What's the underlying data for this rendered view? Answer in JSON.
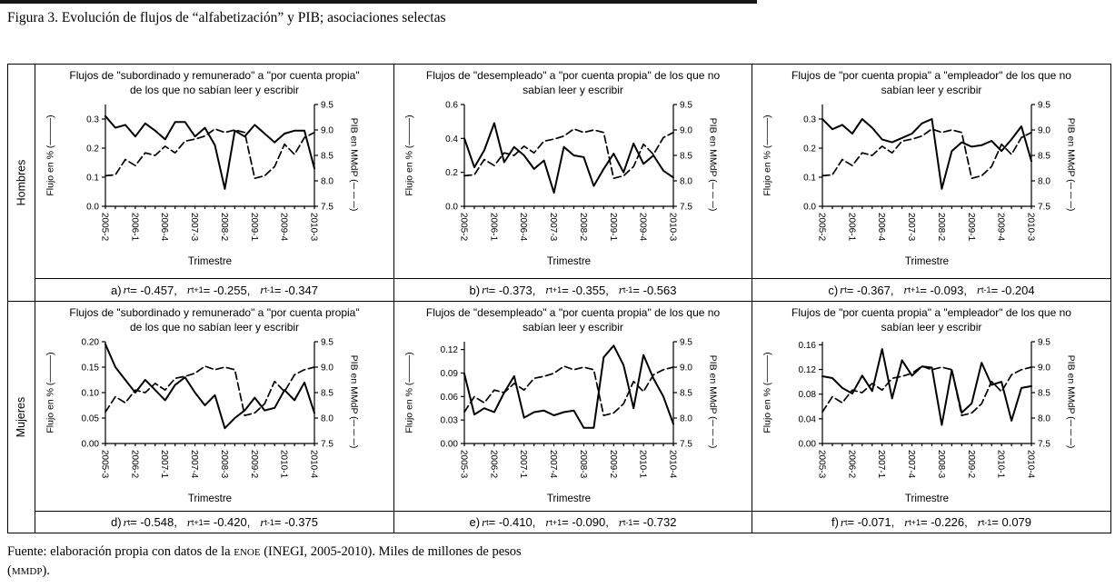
{
  "figure": {
    "title": "Figura 3. Evolución de flujos de “alfabetización” y PIB; asociaciones selectas"
  },
  "rows": [
    {
      "label": "Hombres"
    },
    {
      "label": "Mujeres"
    }
  ],
  "footer": {
    "pre": "Fuente: elaboración propia con datos de la ",
    "enoe": "ENOE",
    "post": " (INEGI, 2005-2010). Miles de millones de pesos",
    "l2_open": "(",
    "mmdp": "MMDP",
    "l2_close": ")."
  },
  "chart_data": [
    {
      "panel": "a",
      "row": "Hombres",
      "type": "line",
      "title": "Flujos de \"subordinado y remunerado\" a \"por cuenta propia\" de los que no sabían leer y escribir",
      "xlabel": "Trimestre",
      "ylabel_left": "Flujo en % (────)",
      "ylabel_right": "PIB en MMdP (─ ─ ─)",
      "x_tick_labels": [
        "2005-2",
        "2006-1",
        "2006-4",
        "2007-3",
        "2008-2",
        "2009-1",
        "2009-4",
        "2010-3"
      ],
      "label_every": 3,
      "yticks_left": [
        "0.0",
        "0.1",
        "0.2",
        "0.3"
      ],
      "ylim_left": [
        0,
        0.35
      ],
      "yticks_right": [
        "7.5",
        "8.0",
        "8.5",
        "9.0",
        "9.5"
      ],
      "ylim_right": [
        7.5,
        9.5
      ],
      "legend_position": "none",
      "grid": false,
      "series": [
        {
          "name": "Flujo en %",
          "style": "solid",
          "axis": "left",
          "values": [
            0.31,
            0.27,
            0.28,
            0.24,
            0.285,
            0.26,
            0.23,
            0.29,
            0.29,
            0.24,
            0.27,
            0.21,
            0.06,
            0.26,
            0.24,
            0.28,
            0.25,
            0.22,
            0.25,
            0.26,
            0.26,
            0.13
          ]
        },
        {
          "name": "PIB en MMdP",
          "style": "dashed",
          "axis": "right",
          "values": [
            8.1,
            8.12,
            8.42,
            8.3,
            8.55,
            8.5,
            8.68,
            8.55,
            8.78,
            8.82,
            8.88,
            9.02,
            8.95,
            9.0,
            8.95,
            8.05,
            8.1,
            8.28,
            8.72,
            8.52,
            8.85,
            8.95
          ]
        }
      ],
      "stats": {
        "prefix": "a)",
        "r": [
          {
            "sub": "t",
            "value": "-0.457"
          },
          {
            "sub": "t+1",
            "value": "-0.255"
          },
          {
            "sub": "t-1",
            "value": "-0.347"
          }
        ]
      }
    },
    {
      "panel": "b",
      "row": "Hombres",
      "type": "line",
      "title": "Flujos de \"desempleado\" a \"por cuenta propia\" de los que no sabían leer y escribir",
      "xlabel": "Trimestre",
      "ylabel_left": "Flujo en % (────)",
      "ylabel_right": "PIB en MMdP (─ ─ ─)",
      "x_tick_labels": [
        "2005-2",
        "2006-1",
        "2006-4",
        "2007-3",
        "2008-2",
        "2009-1",
        "2009-4",
        "2010-3"
      ],
      "label_every": 3,
      "yticks_left": [
        "0.0",
        "0.2",
        "0.4",
        "0.6"
      ],
      "ylim_left": [
        0,
        0.6
      ],
      "yticks_right": [
        "7.5",
        "8.0",
        "8.5",
        "9.0",
        "9.5"
      ],
      "ylim_right": [
        7.5,
        9.5
      ],
      "legend_position": "none",
      "grid": false,
      "series": [
        {
          "name": "Flujo en %",
          "style": "solid",
          "axis": "left",
          "values": [
            0.4,
            0.23,
            0.33,
            0.49,
            0.26,
            0.35,
            0.3,
            0.22,
            0.27,
            0.08,
            0.35,
            0.3,
            0.29,
            0.12,
            0.22,
            0.31,
            0.2,
            0.37,
            0.25,
            0.3,
            0.21,
            0.17
          ]
        },
        {
          "name": "PIB en MMdP",
          "style": "dashed",
          "axis": "right",
          "values": [
            8.1,
            8.12,
            8.42,
            8.3,
            8.55,
            8.5,
            8.68,
            8.55,
            8.78,
            8.82,
            8.88,
            9.02,
            8.95,
            9.0,
            8.95,
            8.05,
            8.1,
            8.28,
            8.72,
            8.52,
            8.85,
            8.95
          ]
        }
      ],
      "stats": {
        "prefix": "b)",
        "r": [
          {
            "sub": "t",
            "value": "-0.373"
          },
          {
            "sub": "t+1",
            "value": "-0.355"
          },
          {
            "sub": "t-1",
            "value": "-0.563"
          }
        ]
      }
    },
    {
      "panel": "c",
      "row": "Hombres",
      "type": "line",
      "title": "Flujos de \"por cuenta propia\" a \"empleador\" de los que no sabían leer y escribir",
      "xlabel": "Trimestre",
      "ylabel_left": "Flujo en % (────)",
      "ylabel_right": "PIB en MMdP (─ ─ ─)",
      "x_tick_labels": [
        "2005-2",
        "2006-1",
        "2006-4",
        "2007-3",
        "2008-2",
        "2009-1",
        "2009-4",
        "2010-3"
      ],
      "label_every": 3,
      "yticks_left": [
        "0.0",
        "0.1",
        "0.2",
        "0.3"
      ],
      "ylim_left": [
        0,
        0.35
      ],
      "yticks_right": [
        "7.5",
        "8.0",
        "8.5",
        "9.0",
        "9.5"
      ],
      "ylim_right": [
        7.5,
        9.5
      ],
      "legend_position": "none",
      "grid": false,
      "series": [
        {
          "name": "Flujo en %",
          "style": "solid",
          "axis": "left",
          "values": [
            0.3,
            0.265,
            0.28,
            0.25,
            0.3,
            0.27,
            0.23,
            0.22,
            0.235,
            0.25,
            0.285,
            0.3,
            0.06,
            0.19,
            0.22,
            0.205,
            0.21,
            0.225,
            0.19,
            0.23,
            0.275,
            0.155
          ]
        },
        {
          "name": "PIB en MMdP",
          "style": "dashed",
          "axis": "right",
          "values": [
            8.1,
            8.12,
            8.42,
            8.3,
            8.55,
            8.5,
            8.68,
            8.55,
            8.78,
            8.82,
            8.88,
            9.02,
            8.95,
            9.0,
            8.95,
            8.05,
            8.1,
            8.28,
            8.72,
            8.52,
            8.85,
            8.95
          ]
        }
      ],
      "stats": {
        "prefix": "c)",
        "r": [
          {
            "sub": "t",
            "value": "-0.367"
          },
          {
            "sub": "t+1",
            "value": "-0.093"
          },
          {
            "sub": "t-1",
            "value": "-0.204"
          }
        ]
      }
    },
    {
      "panel": "d",
      "row": "Mujeres",
      "type": "line",
      "title": "Flujos de \"subordinado y remunerado\" a \"por cuenta propia\" de los que no sabían leer y escribir",
      "xlabel": "Trimestre",
      "ylabel_left": "Flujo en % (────)",
      "ylabel_right": "PIB en MMdP (─ ─ ─)",
      "x_tick_labels": [
        "2005-3",
        "2006-2",
        "2007-1",
        "2007-4",
        "2008-3",
        "2009-2",
        "2010-1",
        "2010-4"
      ],
      "label_every": 3,
      "yticks_left": [
        "0.00",
        "0.05",
        "0.10",
        "0.15",
        "0.20"
      ],
      "ylim_left": [
        0,
        0.2
      ],
      "yticks_right": [
        "7.5",
        "8.0",
        "8.5",
        "9.0",
        "9.5"
      ],
      "ylim_right": [
        7.5,
        9.5
      ],
      "legend_position": "none",
      "grid": false,
      "series": [
        {
          "name": "Flujo en %",
          "style": "solid",
          "axis": "left",
          "values": [
            0.195,
            0.15,
            0.125,
            0.1,
            0.125,
            0.105,
            0.085,
            0.115,
            0.13,
            0.1,
            0.075,
            0.095,
            0.03,
            0.05,
            0.065,
            0.09,
            0.065,
            0.07,
            0.105,
            0.085,
            0.12,
            0.06
          ]
        },
        {
          "name": "PIB en MMdP",
          "style": "dashed",
          "axis": "right",
          "values": [
            8.12,
            8.42,
            8.3,
            8.55,
            8.5,
            8.68,
            8.55,
            8.78,
            8.82,
            8.88,
            9.02,
            8.95,
            9.0,
            8.95,
            8.05,
            8.1,
            8.28,
            8.72,
            8.52,
            8.85,
            8.95,
            9.0
          ]
        }
      ],
      "stats": {
        "prefix": "d)",
        "r": [
          {
            "sub": "t",
            "value": "-0.548"
          },
          {
            "sub": "t+1",
            "value": "-0.420"
          },
          {
            "sub": "t-1",
            "value": "-0.375"
          }
        ]
      }
    },
    {
      "panel": "e",
      "row": "Mujeres",
      "type": "line",
      "title": "Flujos de \"desempleado\" a \"por cuenta propia\" de los que no sabían leer y escribir",
      "xlabel": "Trimestre",
      "ylabel_left": "Flujo en % (────)",
      "ylabel_right": "PIB en MMdP (─ ─ ─)",
      "x_tick_labels": [
        "2005-3",
        "2006-2",
        "2007-1",
        "2007-4",
        "2008-3",
        "2009-2",
        "2010-1",
        "2010-4"
      ],
      "label_every": 3,
      "yticks_left": [
        "0.00",
        "0.03",
        "0.06",
        "0.09",
        "0.12"
      ],
      "ylim_left": [
        0,
        0.13
      ],
      "yticks_right": [
        "7.5",
        "8.0",
        "8.5",
        "9.0",
        "9.5"
      ],
      "ylim_right": [
        7.5,
        9.5
      ],
      "legend_position": "none",
      "grid": false,
      "series": [
        {
          "name": "Flujo en %",
          "style": "solid",
          "axis": "left",
          "values": [
            0.089,
            0.037,
            0.045,
            0.04,
            0.065,
            0.086,
            0.033,
            0.04,
            0.042,
            0.036,
            0.04,
            0.042,
            0.02,
            0.02,
            0.11,
            0.125,
            0.1,
            0.045,
            0.113,
            0.083,
            0.06,
            0.025
          ]
        },
        {
          "name": "PIB en MMdP",
          "style": "dashed",
          "axis": "right",
          "values": [
            8.12,
            8.42,
            8.3,
            8.55,
            8.5,
            8.68,
            8.55,
            8.78,
            8.82,
            8.88,
            9.02,
            8.95,
            9.0,
            8.95,
            8.05,
            8.1,
            8.28,
            8.72,
            8.52,
            8.85,
            8.95,
            9.0
          ]
        }
      ],
      "stats": {
        "prefix": "e)",
        "r": [
          {
            "sub": "t",
            "value": "-0.410"
          },
          {
            "sub": "t+1",
            "value": "-0.090"
          },
          {
            "sub": "t-1",
            "value": "-0.732"
          }
        ]
      }
    },
    {
      "panel": "f",
      "row": "Mujeres",
      "type": "line",
      "title": "Flujos de \"por cuenta propia\" a \"empleador\" de los que no sabían leer y escribir",
      "xlabel": "Trimestre",
      "ylabel_left": "Flujo en % (────)",
      "ylabel_right": "PIB en MMdP (─ ─ ─)",
      "x_tick_labels": [
        "2005-3",
        "2006-2",
        "2007-1",
        "2007-4",
        "2008-3",
        "2009-2",
        "2010-1",
        "2010-4"
      ],
      "label_every": 3,
      "yticks_left": [
        "0.00",
        "0.04",
        "0.08",
        "0.12",
        "0.16"
      ],
      "ylim_left": [
        0,
        0.165
      ],
      "yticks_right": [
        "7.5",
        "8.0",
        "8.5",
        "9.0",
        "9.5"
      ],
      "ylim_right": [
        7.5,
        9.5
      ],
      "legend_position": "none",
      "grid": false,
      "series": [
        {
          "name": "Flujo en %",
          "style": "solid",
          "axis": "left",
          "values": [
            0.109,
            0.106,
            0.09,
            0.081,
            0.11,
            0.085,
            0.153,
            0.073,
            0.135,
            0.11,
            0.125,
            0.123,
            0.03,
            0.119,
            0.05,
            0.065,
            0.131,
            0.095,
            0.1,
            0.037,
            0.09,
            0.093
          ]
        },
        {
          "name": "PIB en MMdP",
          "style": "dashed",
          "axis": "right",
          "values": [
            8.12,
            8.42,
            8.3,
            8.55,
            8.5,
            8.68,
            8.55,
            8.78,
            8.82,
            8.88,
            9.02,
            8.95,
            9.0,
            8.95,
            8.05,
            8.1,
            8.28,
            8.72,
            8.52,
            8.85,
            8.95,
            9.0
          ]
        }
      ],
      "stats": {
        "prefix": "f)",
        "r": [
          {
            "sub": "t",
            "value": "-0.071"
          },
          {
            "sub": "t+1",
            "value": "-0.226"
          },
          {
            "sub": "t-1",
            "value": "0.079"
          }
        ]
      }
    }
  ]
}
